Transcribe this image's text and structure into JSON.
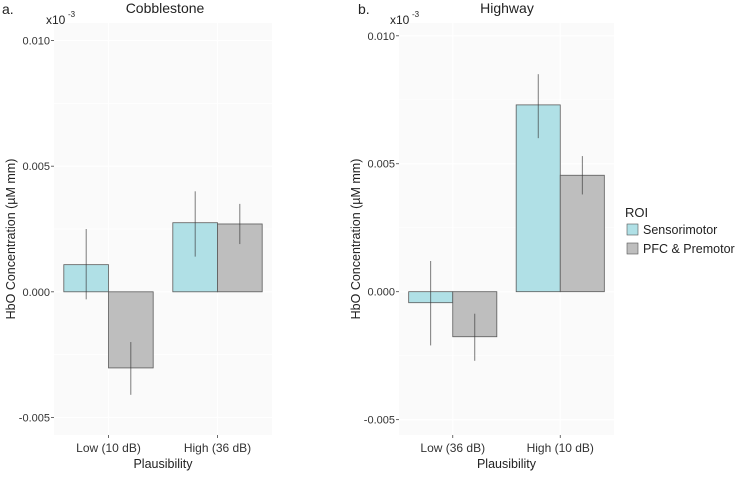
{
  "chart_data": [
    {
      "type": "bar",
      "panel_label": "a.",
      "title": "Cobblestone",
      "xlabel": "Plausibility",
      "ylabel": "HbO Concentration (µM mm)",
      "y_multiplier": "x10",
      "y_multiplier_exp": "-3",
      "ylim": [
        -0.0057,
        0.0107
      ],
      "yticks": [
        -0.005,
        0.0,
        0.005,
        0.01
      ],
      "ytick_labels": [
        "-0.005",
        "0.000",
        "0.005",
        "0.010"
      ],
      "categories": [
        "Low (10 dB)",
        "High (36 dB)"
      ],
      "series": [
        {
          "name": "Sensorimotor",
          "values": [
            0.00108,
            0.00275
          ],
          "err_low": [
            -0.0003,
            0.0014
          ],
          "err_high": [
            0.0025,
            0.004
          ]
        },
        {
          "name": "PFC & Premotor",
          "values": [
            -0.00303,
            0.0027
          ],
          "err_low": [
            -0.0041,
            0.0019
          ],
          "err_high": [
            -0.002,
            0.0035
          ]
        }
      ]
    },
    {
      "type": "bar",
      "panel_label": "b.",
      "title": "Highway",
      "xlabel": "Plausibility",
      "ylabel": "HbO Concentration (µM mm)",
      "y_multiplier": "x10",
      "y_multiplier_exp": "-3",
      "ylim": [
        -0.0056,
        0.0105
      ],
      "yticks": [
        -0.005,
        0.0,
        0.005,
        0.01
      ],
      "ytick_labels": [
        "-0.005",
        "0.000",
        "0.005",
        "0.010"
      ],
      "categories": [
        "Low (36 dB)",
        "High (10 dB)"
      ],
      "series": [
        {
          "name": "Sensorimotor",
          "values": [
            -0.00043,
            0.0073
          ],
          "err_low": [
            -0.0021,
            0.006
          ],
          "err_high": [
            0.0012,
            0.0085
          ]
        },
        {
          "name": "PFC & Premotor",
          "values": [
            -0.00176,
            0.00455
          ],
          "err_low": [
            -0.0027,
            0.0038
          ],
          "err_high": [
            -0.00086,
            0.0053
          ]
        }
      ]
    }
  ],
  "legend": {
    "title": "ROI",
    "placement": "right",
    "items": [
      {
        "label": "Sensorimotor",
        "color": "#b0e0e6"
      },
      {
        "label": "PFC & Premotor",
        "color": "#bebebe"
      }
    ]
  }
}
